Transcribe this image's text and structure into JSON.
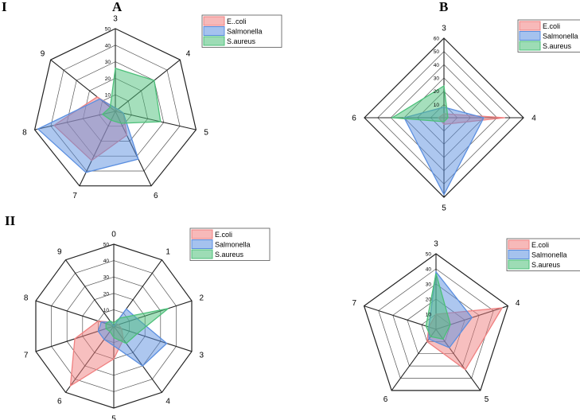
{
  "panel_labels": {
    "I": "I",
    "A": "A",
    "B": "B",
    "II": "II"
  },
  "colors": {
    "E.coli": "#f08080",
    "Salmonella": "#5b8fe0",
    "S.aureus": "#4cc079",
    "grid": "#333333"
  },
  "chart_data": [
    {
      "type": "radar",
      "panel": "A",
      "axes": [
        "3",
        "4",
        "5",
        "6",
        "7",
        "8",
        "9"
      ],
      "top_label": "",
      "ticks": [
        "10",
        "20",
        "30",
        "40",
        "50"
      ],
      "rmax": 50,
      "legend": [
        "E..coli",
        "Salmonella",
        "S.aureus"
      ],
      "series": [
        {
          "name": "E..coli",
          "values": [
            2,
            2,
            5,
            16,
            33,
            38,
            14
          ]
        },
        {
          "name": "Salmonella",
          "values": [
            2,
            2,
            5,
            32,
            41,
            48,
            12
          ]
        },
        {
          "name": "S.aureus",
          "values": [
            26,
            30,
            28,
            8,
            6,
            8,
            4
          ]
        }
      ]
    },
    {
      "type": "radar",
      "panel": "B",
      "axes": [
        "3",
        "4",
        "5",
        "6"
      ],
      "ticks": [
        "10",
        "20",
        "30",
        "40",
        "50",
        "60"
      ],
      "rmax": 60,
      "legend": [
        "E.coli",
        "Salmonella",
        "S.aureus"
      ],
      "series": [
        {
          "name": "E.coli",
          "values": [
            3,
            46,
            5,
            4
          ]
        },
        {
          "name": "Salmonella",
          "values": [
            8,
            30,
            58,
            30
          ]
        },
        {
          "name": "S.aureus",
          "values": [
            24,
            3,
            3,
            39
          ]
        }
      ]
    },
    {
      "type": "radar",
      "panel": "II-left",
      "axes": [
        "0",
        "1",
        "2",
        "3",
        "4",
        "5",
        "6",
        "7",
        "8",
        "9"
      ],
      "ticks": [
        "10",
        "20",
        "30",
        "40",
        "50"
      ],
      "rmax": 50,
      "legend": [
        "E.coli",
        "Salmonella",
        "S.aureus"
      ],
      "series": [
        {
          "name": "E.coli",
          "values": [
            0,
            2,
            3,
            5,
            10,
            20,
            45,
            25,
            10,
            3
          ]
        },
        {
          "name": "Salmonella",
          "values": [
            0,
            13,
            15,
            34,
            30,
            12,
            10,
            10,
            8,
            3
          ]
        },
        {
          "name": "S.aureus",
          "values": [
            2,
            6,
            35,
            15,
            13,
            7,
            4,
            5,
            5,
            4
          ]
        }
      ]
    },
    {
      "type": "radar",
      "panel": "II-right",
      "axes": [
        "3",
        "4",
        "5",
        "6",
        "7"
      ],
      "ticks": [
        "10",
        "20",
        "30",
        "40",
        "50"
      ],
      "rmax": 50,
      "legend": [
        "E.coli",
        "Salmonella",
        "S.aureus"
      ],
      "series": [
        {
          "name": "E.coli",
          "values": [
            10,
            46,
            33,
            10,
            5
          ]
        },
        {
          "name": "Salmonella",
          "values": [
            38,
            25,
            15,
            8,
            5
          ]
        },
        {
          "name": "S.aureus",
          "values": [
            37,
            10,
            8,
            6,
            7
          ]
        }
      ]
    }
  ]
}
